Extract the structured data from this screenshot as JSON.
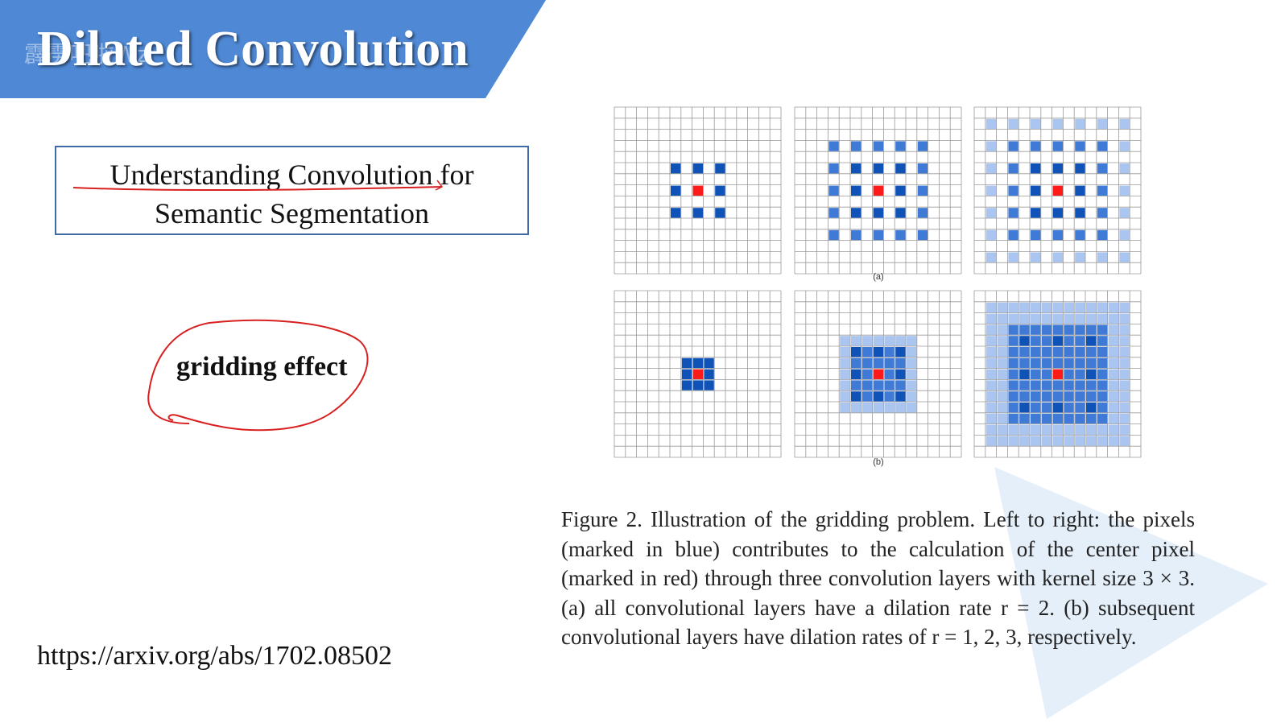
{
  "slide": {
    "title": "Dilated Convolution",
    "watermark": "霹雳吧啦Wz",
    "paper_title_line1": "Understanding Convolution for",
    "paper_title_line2": "Semantic Segmentation",
    "note_label": "gridding effect",
    "url": "https://arxiv.org/abs/1702.08502"
  },
  "figure": {
    "label_a": "(a)",
    "label_b": "(b)",
    "caption": "Figure 2. Illustration of the gridding problem.  Left to right: the pixels (marked in blue) contributes to the calculation of the center pixel (marked in red) through three convolution layers with kernel size 3 × 3. (a) all convolutional layers have a dilation rate r = 2. (b) subsequent convolutional layers have dilation rates of r = 1, 2, 3, respectively."
  },
  "colors": {
    "banner_blue": "#4f88d4",
    "box_border": "#3f6aa6",
    "pixel_dark_blue": "#0f52b8",
    "pixel_mid_blue": "#3f7ad6",
    "pixel_light_blue": "#a9c5f0",
    "center_red": "#ff1a1a",
    "annotation_red": "#d82020"
  }
}
